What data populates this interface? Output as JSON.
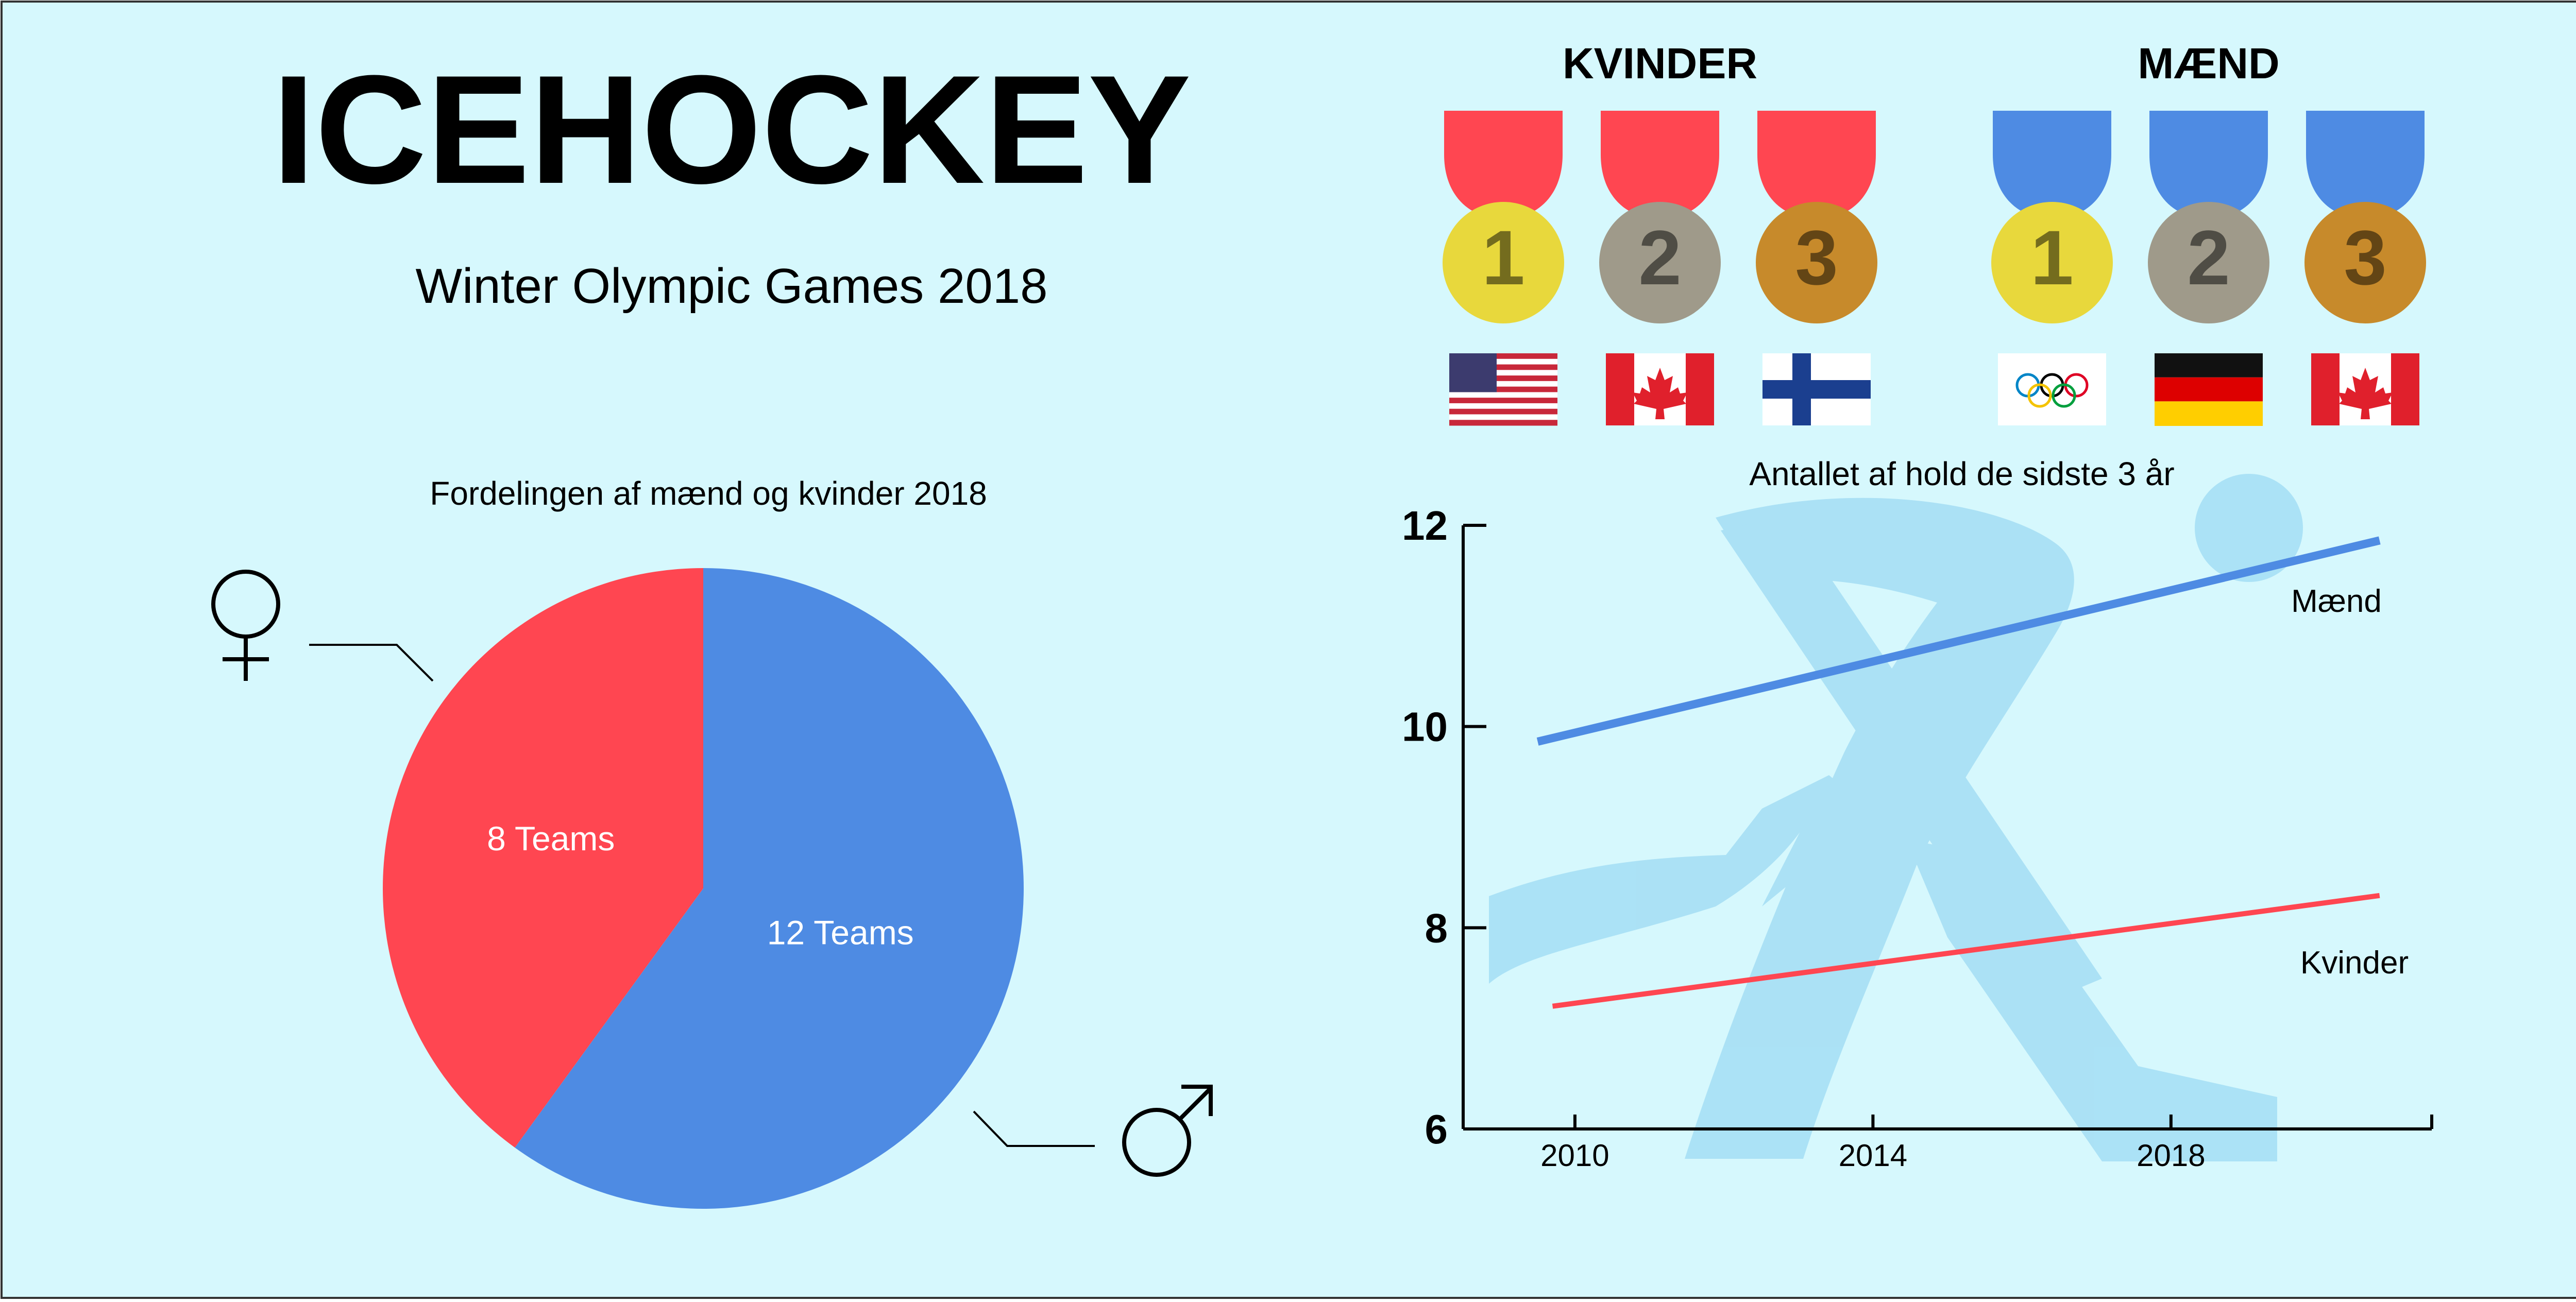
{
  "header": {
    "title": "ICEHOCKEY",
    "subtitle": "Winter Olympic Games 2018"
  },
  "medals": {
    "groups": [
      {
        "label": "KVINDER",
        "ribbon_color": "#ff4651",
        "items": [
          {
            "rank": "1",
            "flag": "usa-flag-icon"
          },
          {
            "rank": "2",
            "flag": "canada-flag-icon"
          },
          {
            "rank": "3",
            "flag": "finland-flag-icon"
          }
        ]
      },
      {
        "label": "MÆND",
        "ribbon_color": "#4e8be3",
        "items": [
          {
            "rank": "1",
            "flag": "olympic-rings-flag-icon"
          },
          {
            "rank": "2",
            "flag": "germany-flag-icon"
          },
          {
            "rank": "3",
            "flag": "canada-flag-icon"
          }
        ]
      }
    ],
    "medal_colors": [
      "#e8d83c",
      "#9f9a8a",
      "#c78a2b"
    ]
  },
  "colors": {
    "background": "#d6f8fd",
    "women": "#ff4651",
    "men": "#4e8be3",
    "silhouette": "#a9e0f5"
  },
  "chart_data": [
    {
      "type": "pie",
      "title": "Fordelingen af mænd og kvinder 2018",
      "slices": [
        {
          "label": "8 Teams",
          "value": 8,
          "color": "#ff4651",
          "icon": "female-symbol-icon"
        },
        {
          "label": "12 Teams",
          "value": 12,
          "color": "#4e8be3",
          "icon": "male-symbol-icon"
        }
      ]
    },
    {
      "type": "line",
      "title": "Antallet af hold de sidste 3 år",
      "xlabel": "",
      "ylabel": "",
      "x_ticks": [
        "2010",
        "2014",
        "2018"
      ],
      "y_ticks": [
        "6",
        "8",
        "10",
        "12"
      ],
      "xlim": [
        2008.5,
        2021.5
      ],
      "ylim": [
        6,
        12
      ],
      "series": [
        {
          "name": "Mænd",
          "color": "#4e8be3",
          "x": [
            2009.5,
            2020.8
          ],
          "y": [
            9.85,
            11.85
          ]
        },
        {
          "name": "Kvinder",
          "color": "#ff4651",
          "x": [
            2009.7,
            2020.8
          ],
          "y": [
            7.22,
            8.32
          ]
        }
      ]
    }
  ]
}
